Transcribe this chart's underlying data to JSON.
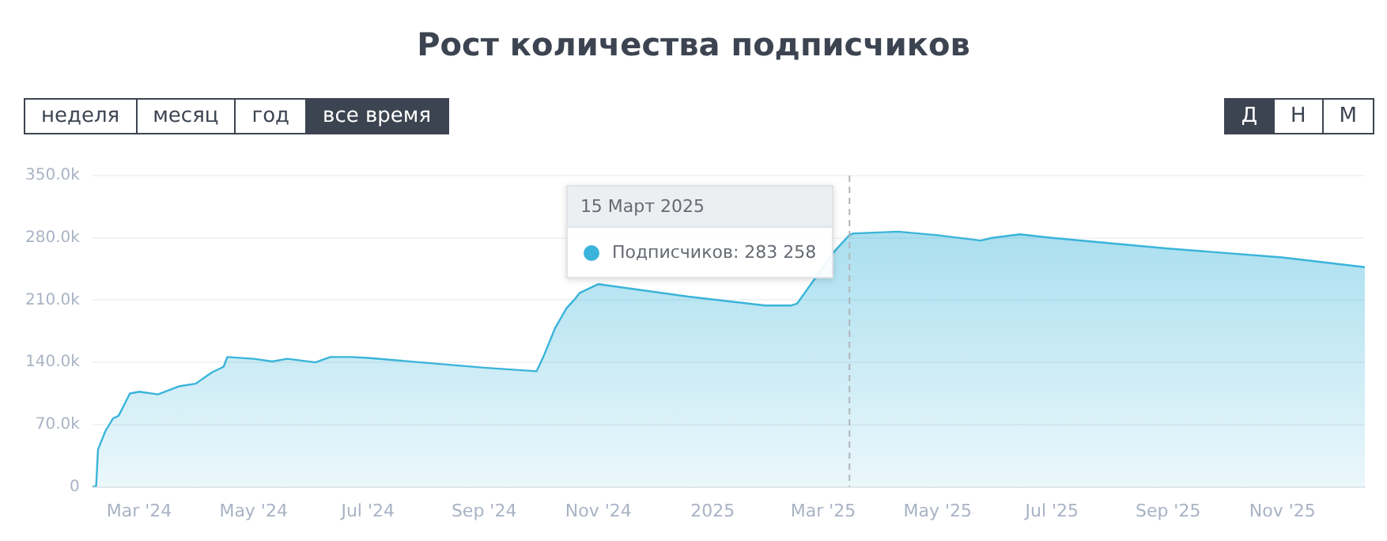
{
  "chart_data": {
    "type": "area",
    "title": "Рост количества подписчиков",
    "x": [
      "2024-02-05",
      "2024-02-07",
      "2024-02-08",
      "2024-02-12",
      "2024-02-16",
      "2024-02-19",
      "2024-02-25",
      "2024-03-01",
      "2024-03-11",
      "2024-03-22",
      "2024-03-31",
      "2024-04-09",
      "2024-04-15",
      "2024-04-17",
      "2024-05-01",
      "2024-05-11",
      "2024-05-19",
      "2024-06-03",
      "2024-06-11",
      "2024-06-22",
      "2024-07-01",
      "2024-09-01",
      "2024-09-29",
      "2024-10-03",
      "2024-10-09",
      "2024-10-15",
      "2024-10-19",
      "2024-10-22",
      "2024-11-01",
      "2024-12-19",
      "2025-01-29",
      "2025-02-12",
      "2025-02-15",
      "2025-03-07",
      "2025-03-15",
      "2025-03-17",
      "2025-04-10",
      "2025-05-01",
      "2025-05-24",
      "2025-05-30",
      "2025-06-14",
      "2025-07-01",
      "2025-09-01",
      "2025-11-01",
      "2025-12-15"
    ],
    "series": [
      {
        "color": "#3ab4da",
        "values": [
          0,
          1000,
          42000,
          63000,
          77000,
          80000,
          105000,
          107000,
          104000,
          113000,
          116000,
          129000,
          135000,
          146000,
          144000,
          141000,
          144000,
          140000,
          146000,
          146000,
          145000,
          134000,
          130000,
          148000,
          179000,
          201000,
          210000,
          218000,
          228000,
          214000,
          204000,
          204000,
          206000,
          265000,
          283258,
          285000,
          287000,
          283000,
          277000,
          280000,
          284000,
          280000,
          268000,
          258000,
          247000
        ]
      }
    ],
    "xlim": [
      "2024-02-05",
      "2025-12-15"
    ],
    "xticks": [
      {
        "value": "2024-03-01",
        "label": "Mar '24"
      },
      {
        "value": "2024-05-01",
        "label": "May '24"
      },
      {
        "value": "2024-07-01",
        "label": "Jul '24"
      },
      {
        "value": "2024-09-01",
        "label": "Sep '24"
      },
      {
        "value": "2024-11-01",
        "label": "Nov '24"
      },
      {
        "value": "2025-01-01",
        "label": "2025"
      },
      {
        "value": "2025-03-01",
        "label": "Mar '25"
      },
      {
        "value": "2025-05-01",
        "label": "May '25"
      },
      {
        "value": "2025-07-01",
        "label": "Jul '25"
      },
      {
        "value": "2025-09-01",
        "label": "Sep '25"
      },
      {
        "value": "2025-11-01",
        "label": "Nov '25"
      }
    ],
    "ylim": [
      0,
      350000
    ],
    "yticks": [
      0,
      {
        "value": 70000,
        "label": "70.0k"
      },
      {
        "value": 140000,
        "label": "140.0k"
      },
      {
        "value": 210000,
        "label": "210.0k"
      },
      {
        "value": 280000,
        "label": "280.0k"
      },
      {
        "value": 350000,
        "label": "350.0k"
      }
    ],
    "grid": "y",
    "legend": false,
    "marker": "none",
    "line_style": "solid",
    "ref_lines": [
      {
        "axis": "x",
        "value": "2025-03-15",
        "color": "#b0b5bb",
        "line_style": "dashed"
      }
    ],
    "annotations": [
      "неделя",
      "месяц",
      "год",
      "все время",
      "Д",
      "Н",
      "М",
      "15 Март 2025",
      "Подписчиков: 283 258"
    ]
  }
}
